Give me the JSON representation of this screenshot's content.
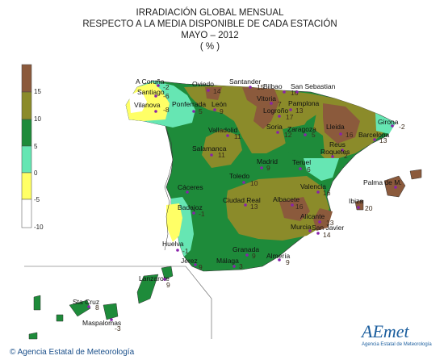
{
  "title": {
    "line1": "IRRADIACIÓN GLOBAL MENSUAL",
    "line2": "RESPECTO A LA MEDIA DISPONIBLE DE CADA ESTACIÓN",
    "line3": "MAYO – 2012",
    "line4": "( % )"
  },
  "legend": {
    "ticks": [
      "15",
      "10",
      "5",
      "0",
      "-5",
      "-10"
    ],
    "colors": [
      "#8b5a3c",
      "#8b8b2a",
      "#1e8b3a",
      "#66e6b3",
      "#ffff66",
      "#ffffff"
    ]
  },
  "stations": [
    {
      "name": "A Coruña",
      "value": "-2"
    },
    {
      "name": "Santiago",
      "value": "-6"
    },
    {
      "name": "Vilanova",
      "value": "-8"
    },
    {
      "name": "Ponferrada",
      "value": "5"
    },
    {
      "name": "León",
      "value": "9"
    },
    {
      "name": "Oviedo",
      "value": "14"
    },
    {
      "name": "Santander",
      "value": "15"
    },
    {
      "name": "Bilbao",
      "value": "16"
    },
    {
      "name": "San Sebastian",
      "value": ""
    },
    {
      "name": "Vitoria",
      "value": "7"
    },
    {
      "name": "Pamplona",
      "value": "13"
    },
    {
      "name": "Logroño",
      "value": "17"
    },
    {
      "name": "Girona",
      "value": "-2"
    },
    {
      "name": "Lleida",
      "value": "16"
    },
    {
      "name": "Barcelona",
      "value": "13"
    },
    {
      "name": "Reus",
      "value": "2"
    },
    {
      "name": "Roquetes",
      "value": ""
    },
    {
      "name": "Valladolid",
      "value": "11"
    },
    {
      "name": "Soria",
      "value": "12"
    },
    {
      "name": "Zaragoza",
      "value": "5"
    },
    {
      "name": "Salamanca",
      "value": "11"
    },
    {
      "name": "Madrid",
      "value": "9"
    },
    {
      "name": "Teruel",
      "value": "6"
    },
    {
      "name": "Toledo",
      "value": "10"
    },
    {
      "name": "Palma de M.",
      "value": ""
    },
    {
      "name": "Cáceres",
      "value": ""
    },
    {
      "name": "Ciudad Real",
      "value": "13"
    },
    {
      "name": "Albacete",
      "value": "16"
    },
    {
      "name": "Valencia",
      "value": "16"
    },
    {
      "name": "Ibiza",
      "value": "20"
    },
    {
      "name": "Badajoz",
      "value": "-1"
    },
    {
      "name": "Alicante",
      "value": "13"
    },
    {
      "name": "Murcia",
      "value": ""
    },
    {
      "name": "San Javier",
      "value": "14"
    },
    {
      "name": "Huelva",
      "value": "-1"
    },
    {
      "name": "Granada",
      "value": "9"
    },
    {
      "name": "Almería",
      "value": "9"
    },
    {
      "name": "Jerez",
      "value": "9"
    },
    {
      "name": "Málaga",
      "value": "3"
    },
    {
      "name": "Lanzarote",
      "value": "9"
    },
    {
      "name": "Sta Cruz",
      "value": "8"
    },
    {
      "name": "Maspalomas",
      "value": "-3"
    }
  ],
  "credit": "Agencia Estatal de Meteorología",
  "logo": {
    "main": "AEmet",
    "sub": "Agencia Estatal de Meteorología"
  }
}
